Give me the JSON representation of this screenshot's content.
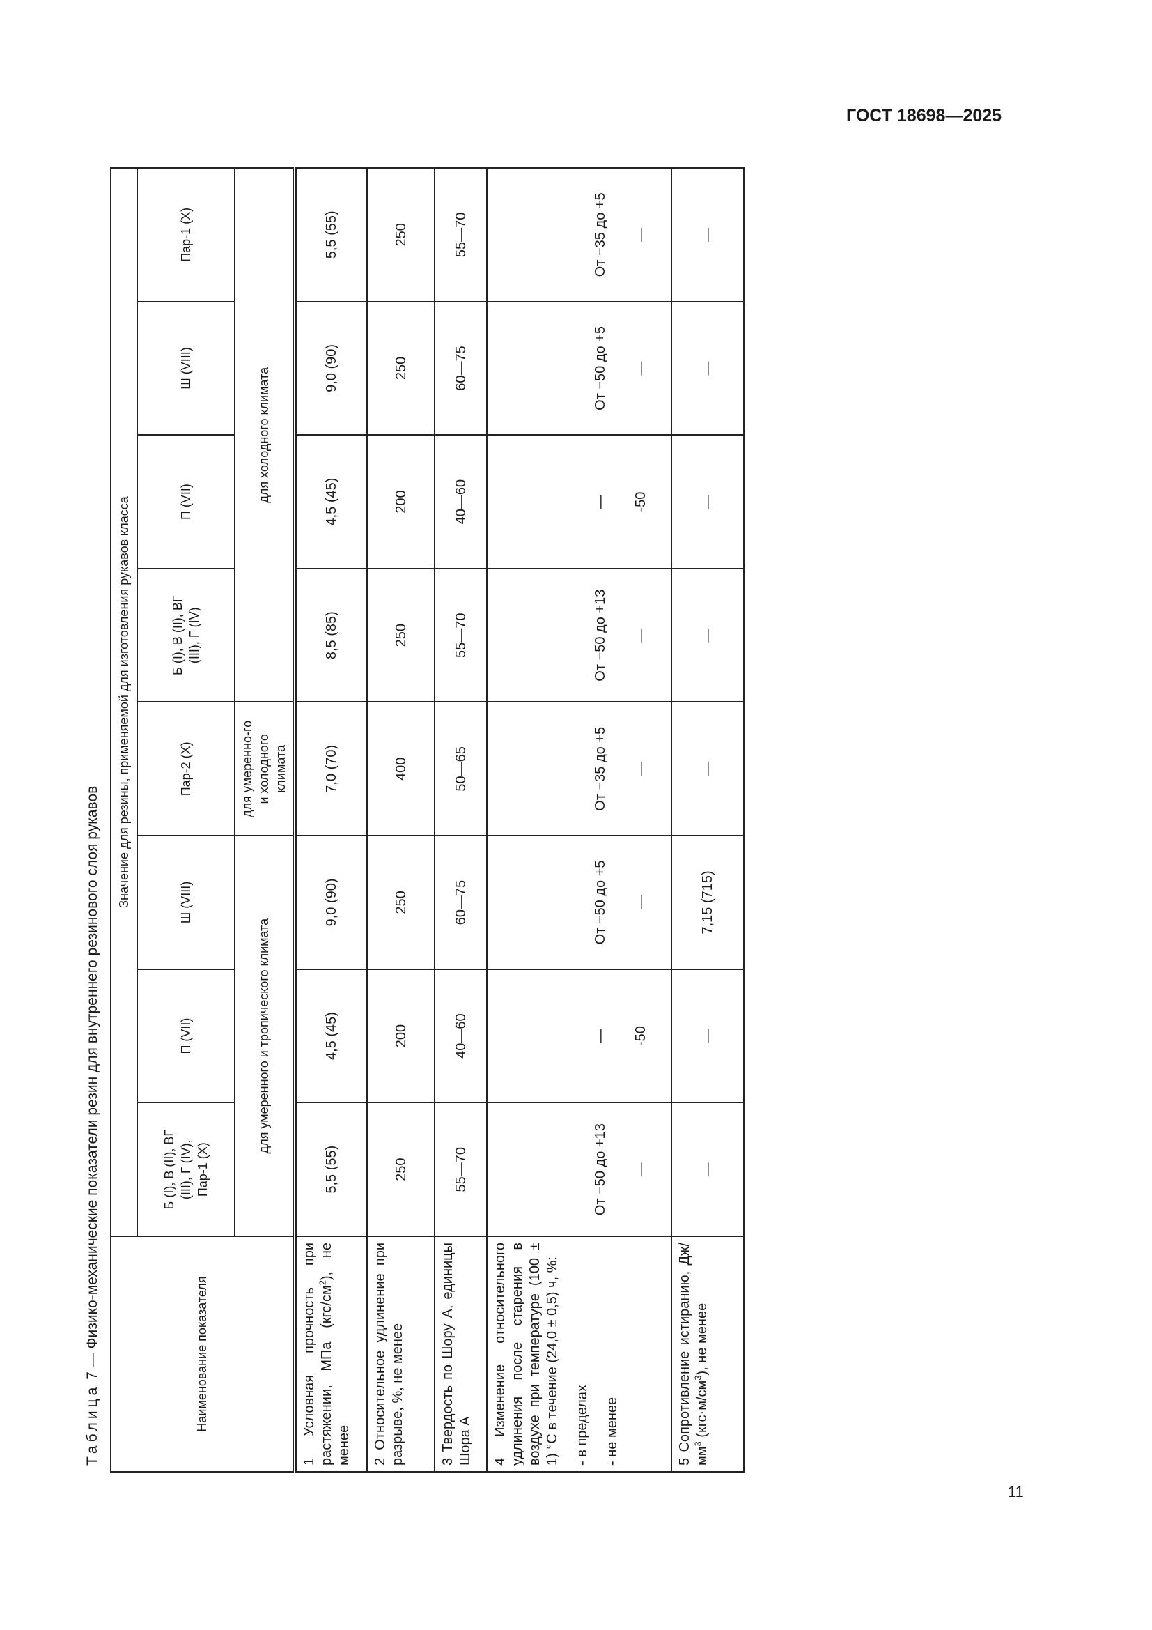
{
  "header": {
    "doc_id": "ГОСТ 18698—2025"
  },
  "caption": {
    "prefix": "Таблица",
    "number": "7",
    "title": "— Физико-механические показатели резин для внутреннего резинового слоя рукавов"
  },
  "table": {
    "name_header": "Наименование показателя",
    "group_header": "Значение для резины, применяемой для изготовления рукавов класса",
    "classes": [
      "Б (I), В (II), ВГ (III), Г (IV), Пар-1 (X)",
      "П (VII)",
      "Ш (VIII)",
      "Пар-2 (X)",
      "Б (I), В (II), ВГ (III), Г (IV)",
      "П (VII)",
      "Ш (VIII)",
      "Пар-1 (X)"
    ],
    "climates": {
      "temperate_tropical": "для умеренного и тропического климата",
      "temperate_cold": "для умеренно-го и холодного климата",
      "cold": "для холодного климата"
    },
    "rows": [
      {
        "name": "1 Условная прочность при растяжении, МПа (кгс/см²), не менее",
        "values": [
          "5,5 (55)",
          "4,5 (45)",
          "9,0 (90)",
          "7,0 (70)",
          "8,5 (85)",
          "4,5 (45)",
          "9,0 (90)",
          "5,5 (55)"
        ]
      },
      {
        "name": "2 Относительное удлинение при разрыве, %, не менее",
        "values": [
          "250",
          "200",
          "250",
          "400",
          "250",
          "200",
          "250",
          "250"
        ]
      },
      {
        "name": "3 Твердость по Шору А, единицы Шора А",
        "values": [
          "55—70",
          "40—60",
          "60—75",
          "50—65",
          "55—70",
          "40—60",
          "60—75",
          "55—70"
        ]
      },
      {
        "name": "4 Изменение относительного удлинения после старения в воздухе при температуре (100 ± 1) °С в течение (24,0 ± 0,5) ч, %:",
        "sub1": "- в пределах",
        "sub2": "- не менее",
        "values1": [
          "От −50 до +13",
          "—",
          "От −50 до +5",
          "От −35 до +5",
          "От −50 до +13",
          "—",
          "От −50 до +5",
          "От −35 до +5"
        ],
        "values2": [
          "—",
          "-50",
          "—",
          "—",
          "—",
          "-50",
          "—",
          "—"
        ]
      },
      {
        "name": "5 Сопротивление истиранию, Дж/мм³ (кгс·м/см³), не менее",
        "values": [
          "—",
          "—",
          "7,15 (715)",
          "—",
          "—",
          "—",
          "—",
          "—"
        ]
      }
    ]
  },
  "footer": {
    "page_number": "11"
  }
}
